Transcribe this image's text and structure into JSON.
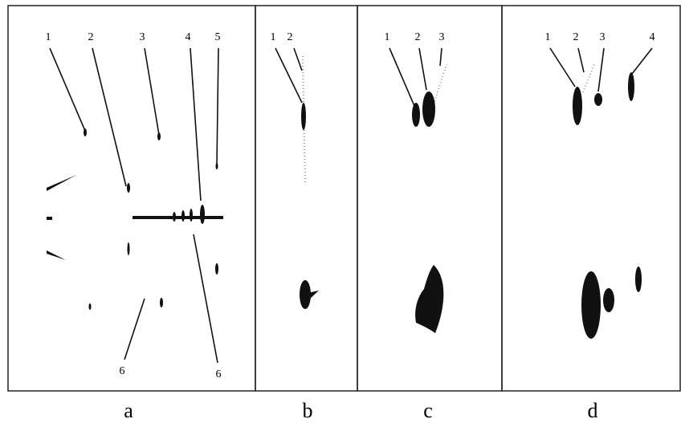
{
  "panels": [
    {
      "label": "a",
      "markers": [
        "1",
        "2",
        "3",
        "4",
        "5",
        "6",
        "6"
      ]
    },
    {
      "label": "b",
      "markers": [
        "1",
        "2"
      ]
    },
    {
      "label": "c",
      "markers": [
        "1",
        "2",
        "3"
      ]
    },
    {
      "label": "d",
      "markers": [
        "1",
        "2",
        "3",
        "4"
      ]
    }
  ]
}
